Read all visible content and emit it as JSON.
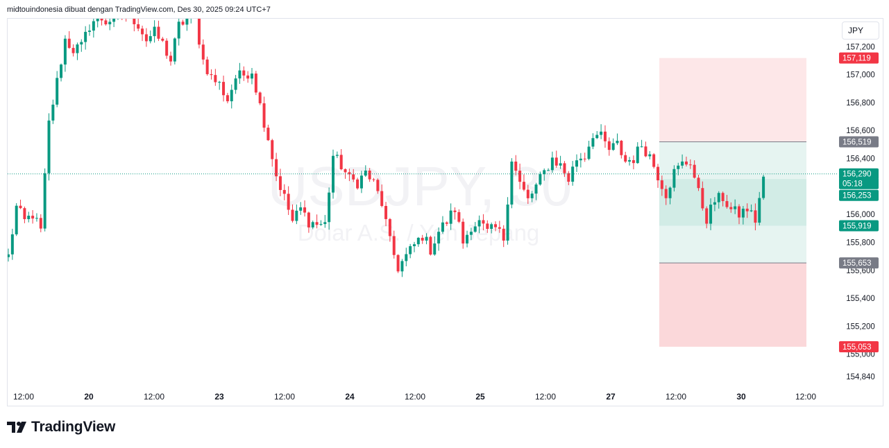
{
  "header": {
    "credit": "midtouindonesia dibuat dengan TradingView.com, Des 30, 2025 09:24 UTC+7"
  },
  "currency_label": "JPY",
  "brand": {
    "name": "TradingView"
  },
  "watermark": {
    "symbol": "USDJPY, 30",
    "description": "Dolar A.S. / Yen Jepang"
  },
  "chart_data": {
    "type": "candlestick",
    "title": "",
    "xlabel": "",
    "ylabel": "",
    "ylim": [
      154.79,
      157.4
    ],
    "y_ticks": [
      "157,200",
      "157,000",
      "156,800",
      "156,600",
      "156,400",
      "156,000",
      "155,800",
      "155,600",
      "155,400",
      "155,200",
      "155,000",
      "154,840"
    ],
    "x_ticks": [
      "12:00",
      "20",
      "12:00",
      "23",
      "12:00",
      "24",
      "12:00",
      "25",
      "12:00",
      "27",
      "12:00",
      "30",
      "12:00"
    ],
    "price_labels": [
      {
        "value": "157,119",
        "kind": "stop"
      },
      {
        "value": "156,519",
        "kind": "entry"
      },
      {
        "value": "156,290",
        "kind": "last"
      },
      {
        "value": "05:18",
        "kind": "countdown"
      },
      {
        "value": "156,253",
        "kind": "last"
      },
      {
        "value": "155,919",
        "kind": "current"
      },
      {
        "value": "155,653",
        "kind": "entry-lower"
      },
      {
        "value": "155,053",
        "kind": "target"
      }
    ],
    "last_price": 156.29,
    "long_short_zones": [
      {
        "name": "stop",
        "from": 156.519,
        "to": 157.119
      },
      {
        "name": "profit",
        "from": 155.653,
        "to": 156.519
      },
      {
        "name": "profit-inner",
        "from": 155.919,
        "to": 156.253
      },
      {
        "name": "loss",
        "from": 155.053,
        "to": 155.653
      }
    ],
    "path": [
      [
        0,
        155.7
      ],
      [
        2,
        156.05
      ],
      [
        4,
        155.95
      ],
      [
        6,
        156.0
      ],
      [
        8,
        155.88
      ],
      [
        10,
        156.65
      ],
      [
        12,
        156.95
      ],
      [
        14,
        157.25
      ],
      [
        16,
        157.18
      ],
      [
        18,
        157.2
      ],
      [
        20,
        157.35
      ],
      [
        22,
        157.42
      ],
      [
        24,
        157.38
      ],
      [
        26,
        157.4
      ],
      [
        28,
        157.45
      ],
      [
        30,
        157.42
      ],
      [
        32,
        157.36
      ],
      [
        34,
        157.25
      ],
      [
        36,
        157.3
      ],
      [
        38,
        157.22
      ],
      [
        40,
        157.1
      ],
      [
        42,
        157.35
      ],
      [
        44,
        157.4
      ],
      [
        46,
        157.4
      ],
      [
        48,
        157.1
      ],
      [
        50,
        156.98
      ],
      [
        52,
        156.93
      ],
      [
        54,
        156.82
      ],
      [
        56,
        156.98
      ],
      [
        58,
        157.0
      ],
      [
        60,
        157.03
      ],
      [
        62,
        156.78
      ],
      [
        64,
        156.55
      ],
      [
        66,
        156.28
      ],
      [
        68,
        156.12
      ],
      [
        70,
        155.95
      ],
      [
        72,
        156.04
      ],
      [
        74,
        155.95
      ],
      [
        76,
        155.93
      ],
      [
        78,
        155.93
      ],
      [
        80,
        156.42
      ],
      [
        82,
        156.35
      ],
      [
        84,
        156.25
      ],
      [
        86,
        156.23
      ],
      [
        88,
        156.3
      ],
      [
        90,
        156.22
      ],
      [
        92,
        156.08
      ],
      [
        94,
        155.8
      ],
      [
        96,
        155.62
      ],
      [
        98,
        155.7
      ],
      [
        100,
        155.78
      ],
      [
        102,
        155.85
      ],
      [
        104,
        155.75
      ],
      [
        106,
        155.88
      ],
      [
        108,
        155.95
      ],
      [
        110,
        156.04
      ],
      [
        112,
        155.8
      ],
      [
        114,
        155.92
      ],
      [
        116,
        155.94
      ],
      [
        118,
        155.87
      ],
      [
        120,
        155.9
      ],
      [
        122,
        155.83
      ],
      [
        124,
        156.4
      ],
      [
        126,
        156.22
      ],
      [
        128,
        156.1
      ],
      [
        130,
        156.2
      ],
      [
        132,
        156.3
      ],
      [
        134,
        156.4
      ],
      [
        136,
        156.35
      ],
      [
        138,
        156.25
      ],
      [
        140,
        156.4
      ],
      [
        142,
        156.42
      ],
      [
        144,
        156.58
      ],
      [
        146,
        156.55
      ],
      [
        148,
        156.46
      ],
      [
        150,
        156.5
      ],
      [
        152,
        156.38
      ],
      [
        154,
        156.4
      ],
      [
        156,
        156.5
      ],
      [
        158,
        156.42
      ],
      [
        160,
        156.28
      ],
      [
        162,
        156.15
      ],
      [
        164,
        156.3
      ],
      [
        166,
        156.36
      ],
      [
        168,
        156.38
      ],
      [
        170,
        156.15
      ],
      [
        172,
        155.97
      ],
      [
        174,
        156.1
      ],
      [
        176,
        156.12
      ],
      [
        178,
        156.03
      ],
      [
        180,
        156.0
      ],
      [
        182,
        156.04
      ],
      [
        184,
        155.96
      ],
      [
        186,
        156.27
      ]
    ]
  }
}
